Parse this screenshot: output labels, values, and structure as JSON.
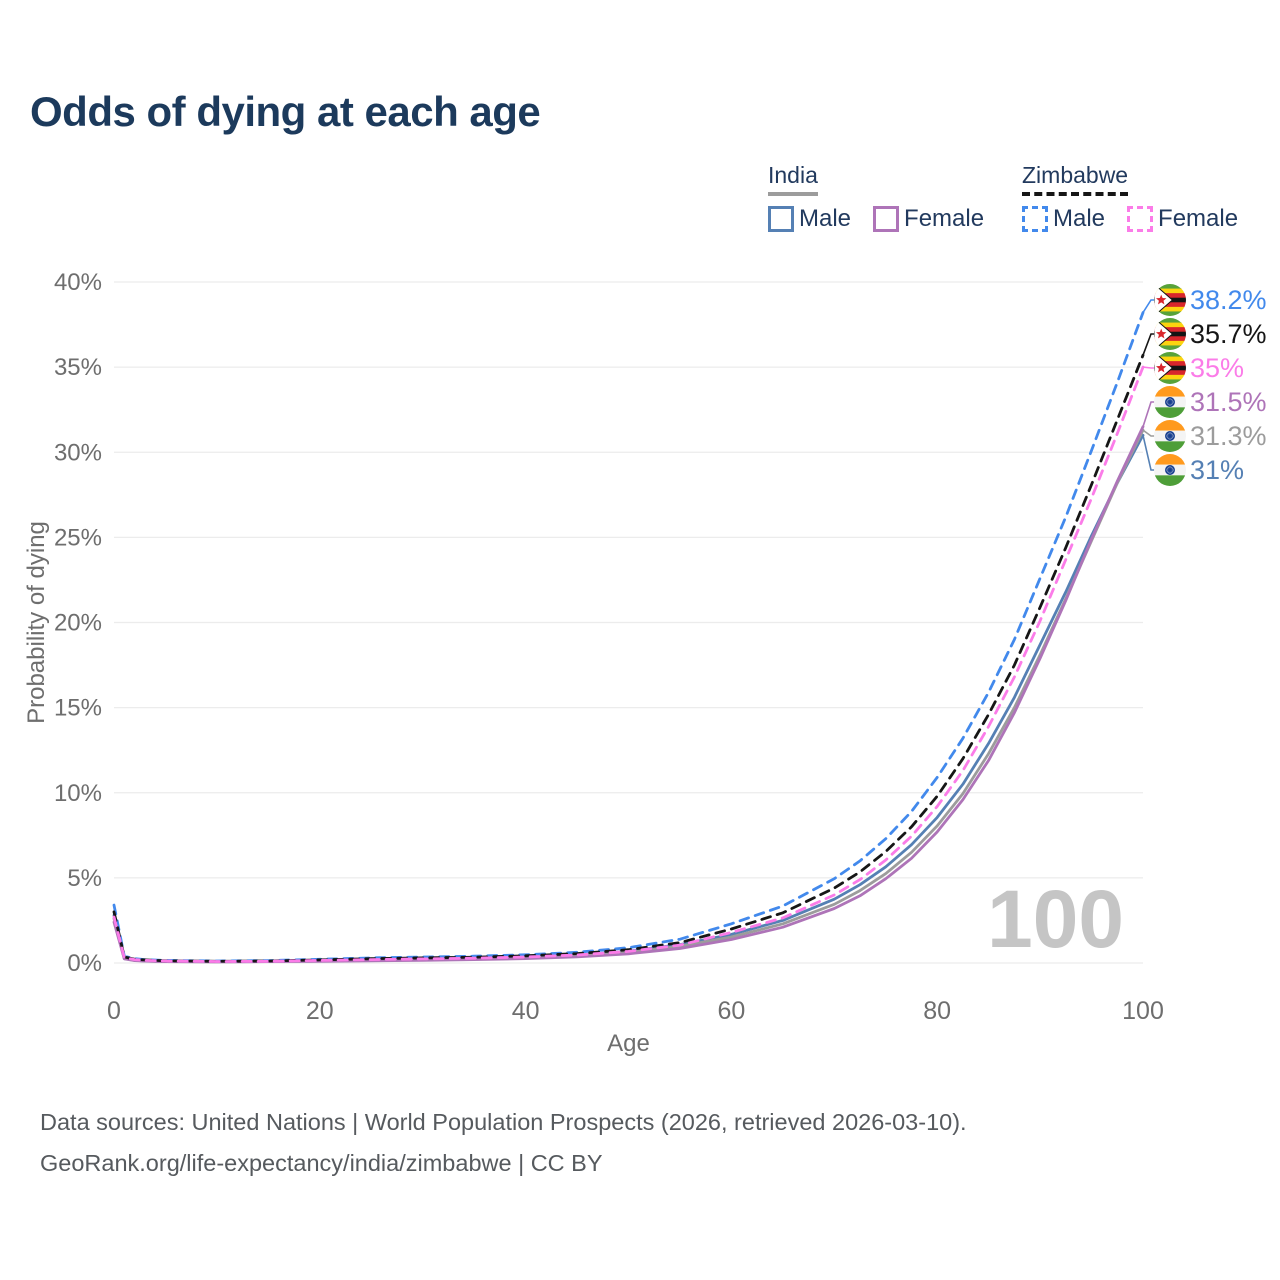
{
  "title": {
    "text": "Odds of dying at each age",
    "color": "#1c3a5c"
  },
  "legend": {
    "groups": [
      {
        "label": "India",
        "underline_style": "solid",
        "underline_color": "#9c9c9c",
        "items": [
          {
            "label": "Male",
            "color": "#5580b4",
            "dashed": false
          },
          {
            "label": "Female",
            "color": "#ae74b8",
            "dashed": false
          }
        ]
      },
      {
        "label": "Zimbabwe",
        "underline_style": "dashed",
        "underline_color": "#161616",
        "items": [
          {
            "label": "Male",
            "color": "#4289ec",
            "dashed": true
          },
          {
            "label": "Female",
            "color": "#fb7ce8",
            "dashed": true
          }
        ]
      }
    ]
  },
  "chart_data": {
    "type": "line",
    "title": "Odds of dying at each age",
    "xlabel": "Age",
    "ylabel": "Probability of dying",
    "xlim": [
      0,
      100
    ],
    "ylim": [
      0,
      40
    ],
    "x_ticks": [
      0,
      20,
      40,
      60,
      80,
      100
    ],
    "y_ticks": [
      0,
      5,
      10,
      15,
      20,
      25,
      30,
      35,
      40
    ],
    "y_tick_suffix": "%",
    "grid": "horizontal",
    "legend_position": "top-right",
    "watermark": "100",
    "x": [
      0,
      1,
      2,
      3,
      5,
      10,
      15,
      20,
      25,
      30,
      35,
      40,
      45,
      50,
      55,
      60,
      65,
      70,
      72.5,
      75,
      77.5,
      80,
      82.5,
      85,
      87.5,
      90,
      92.5,
      95,
      97.5,
      100
    ],
    "series": [
      {
        "name": "Zimbabwe Male",
        "flag": "zimbabwe",
        "color": "#4289ec",
        "dashed": true,
        "end_label": "38.2%",
        "values": [
          3.4,
          0.4,
          0.25,
          0.2,
          0.15,
          0.12,
          0.14,
          0.22,
          0.3,
          0.35,
          0.4,
          0.48,
          0.63,
          0.9,
          1.4,
          2.3,
          3.35,
          4.95,
          6.0,
          7.3,
          8.9,
          10.9,
          13.2,
          15.9,
          19.0,
          22.6,
          26.2,
          30.1,
          34.1,
          38.2
        ]
      },
      {
        "name": "Zimbabwe",
        "flag": "zimbabwe",
        "color": "#161616",
        "dashed": true,
        "end_label": "35.7%",
        "values": [
          3.0,
          0.36,
          0.22,
          0.18,
          0.13,
          0.1,
          0.12,
          0.18,
          0.25,
          0.3,
          0.34,
          0.42,
          0.55,
          0.78,
          1.2,
          2.0,
          2.95,
          4.4,
          5.35,
          6.55,
          8.0,
          9.8,
          12.0,
          14.6,
          17.5,
          20.9,
          24.4,
          28.1,
          31.9,
          35.7
        ]
      },
      {
        "name": "Zimbabwe Female",
        "flag": "zimbabwe",
        "color": "#fb7ce8",
        "dashed": true,
        "end_label": "35%",
        "values": [
          2.7,
          0.32,
          0.2,
          0.16,
          0.12,
          0.09,
          0.1,
          0.15,
          0.2,
          0.24,
          0.28,
          0.35,
          0.47,
          0.68,
          1.05,
          1.8,
          2.65,
          4.0,
          4.9,
          6.05,
          7.45,
          9.2,
          11.3,
          13.9,
          16.8,
          20.1,
          23.7,
          27.3,
          31.1,
          35.0
        ]
      },
      {
        "name": "India Male",
        "flag": "india",
        "color": "#5580b4",
        "dashed": false,
        "end_label": "31%",
        "values": [
          2.8,
          0.28,
          0.16,
          0.13,
          0.09,
          0.08,
          0.1,
          0.14,
          0.18,
          0.21,
          0.26,
          0.33,
          0.46,
          0.7,
          1.08,
          1.68,
          2.5,
          3.75,
          4.6,
          5.65,
          6.95,
          8.55,
          10.5,
          12.9,
          15.6,
          18.7,
          21.8,
          25.1,
          28.2,
          31.0
        ]
      },
      {
        "name": "India",
        "flag": "india",
        "color": "#9c9c9c",
        "dashed": false,
        "end_label": "31.3%",
        "values": [
          2.6,
          0.26,
          0.15,
          0.12,
          0.085,
          0.07,
          0.09,
          0.12,
          0.16,
          0.19,
          0.23,
          0.3,
          0.42,
          0.63,
          0.98,
          1.53,
          2.3,
          3.45,
          4.25,
          5.25,
          6.5,
          8.05,
          9.95,
          12.3,
          15.0,
          18.1,
          21.4,
          24.8,
          28.2,
          31.3
        ]
      },
      {
        "name": "India Female",
        "flag": "india",
        "color": "#ae74b8",
        "dashed": false,
        "end_label": "31.5%",
        "values": [
          2.4,
          0.24,
          0.14,
          0.11,
          0.08,
          0.065,
          0.08,
          0.1,
          0.13,
          0.16,
          0.2,
          0.26,
          0.36,
          0.54,
          0.85,
          1.38,
          2.1,
          3.2,
          3.95,
          4.95,
          6.15,
          7.7,
          9.6,
          11.9,
          14.7,
          17.9,
          21.3,
          24.9,
          28.3,
          31.5
        ]
      }
    ],
    "flag_colors": {
      "zimbabwe": {
        "stripes": [
          "#58a23a",
          "#fcd40f",
          "#d8262c",
          "#141414",
          "#d8262c",
          "#fcd40f",
          "#58a23a"
        ],
        "triangle": "#ffffff",
        "triangle_edge": "#141414",
        "star": "#d8262c"
      },
      "india": {
        "top": "#ff9a1e",
        "middle": "#f4f4f4",
        "bottom": "#4e9e38",
        "chakra": "#173f8f"
      }
    },
    "colors": {
      "grid": "#ececec",
      "axis_text": "#6e6e6e",
      "watermark": "#c5c5c5"
    }
  },
  "footer": {
    "line1": "Data sources: United Nations | World Population Prospects (2026, retrieved 2026-03-10).",
    "line2": "GeoRank.org/life-expectancy/india/zimbabwe | CC BY"
  }
}
